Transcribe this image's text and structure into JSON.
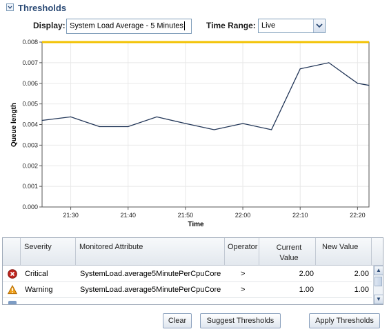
{
  "header": {
    "title": "Thresholds"
  },
  "display": {
    "label": "Display:",
    "value": "System Load Average - 5 Minutes"
  },
  "time_range": {
    "label": "Time Range:",
    "value": "Live"
  },
  "chart_data": {
    "type": "line",
    "ylabel": "Queue length",
    "xlabel": "Time",
    "ylim": [
      0,
      0.008
    ],
    "yticks": [
      "0.000",
      "0.001",
      "0.002",
      "0.003",
      "0.004",
      "0.005",
      "0.006",
      "0.007",
      "0.008"
    ],
    "xticks": [
      "21:30",
      "21:40",
      "21:50",
      "22:00",
      "22:10",
      "22:20"
    ],
    "threshold_line": {
      "value": 0.008,
      "color": "#f2c200"
    },
    "series": [
      {
        "line_color": "#203456",
        "x": [
          "21:25",
          "21:30",
          "21:35",
          "21:40",
          "21:45",
          "21:50",
          "21:55",
          "22:00",
          "22:05",
          "22:10",
          "22:15",
          "22:20",
          "22:22"
        ],
        "values": [
          0.0042,
          0.00437,
          0.0039,
          0.0039,
          0.00437,
          0.00405,
          0.00375,
          0.00405,
          0.00375,
          0.0067,
          0.007,
          0.006,
          0.0059
        ]
      }
    ]
  },
  "table": {
    "columns": [
      "Severity",
      "Monitored Attribute",
      "Operator",
      "Current Value",
      "New Value"
    ],
    "rows": [
      {
        "icon": "critical-icon",
        "severity": "Critical",
        "attribute": "SystemLoad.average5MinutePerCpuCore",
        "operator": ">",
        "current": "2.00",
        "new": "2.00"
      },
      {
        "icon": "warning-icon",
        "severity": "Warning",
        "attribute": "SystemLoad.average5MinutePerCpuCore",
        "operator": ">",
        "current": "1.00",
        "new": "1.00"
      }
    ]
  },
  "buttons": {
    "clear": "Clear",
    "suggest": "Suggest Thresholds",
    "apply": "Apply Thresholds"
  },
  "colors": {
    "accent": "#2b4a75",
    "line": "#203456",
    "threshold": "#f2c200"
  }
}
